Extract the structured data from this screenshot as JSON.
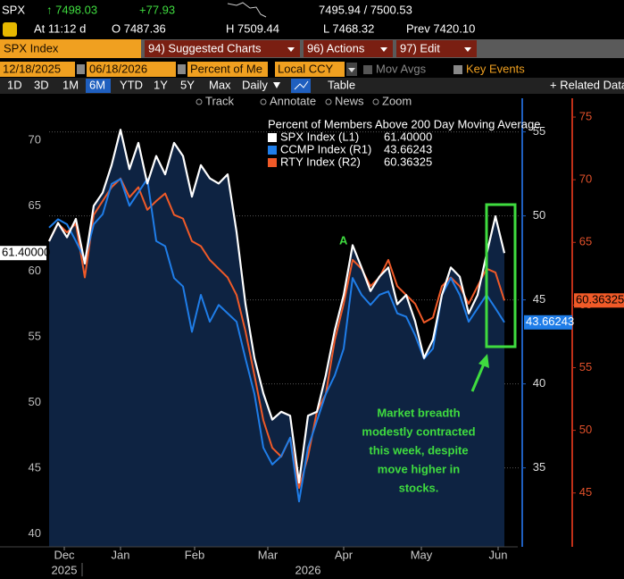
{
  "header": {
    "ticker": "SPX",
    "last": "↑ 7498.03",
    "change": "+77.93",
    "bid_ask": "7495.94 / 7500.53",
    "time": "At 11:12 d",
    "open": "O 7487.36",
    "high": "H 7509.44",
    "low": "L 7468.32",
    "prev": "Prev 7420.10"
  },
  "menu": {
    "security": "SPX Index",
    "items": [
      "94) Suggested Charts",
      "96) Actions",
      "97) Edit"
    ]
  },
  "controls": {
    "start": "12/18/2025",
    "end": "06/18/2026",
    "field": "Percent of Me",
    "currency": "Local CCY",
    "options": [
      "Mov Avgs",
      "Key Events"
    ]
  },
  "ranges": [
    "1D",
    "3D",
    "1M",
    "6M",
    "YTD",
    "1Y",
    "5Y",
    "Max"
  ],
  "selected_range": "6M",
  "frequency": "Daily",
  "table": "Table",
  "related": "+ Related Data",
  "tools": [
    "Track",
    "Annotate",
    "News",
    "Zoom"
  ],
  "chart_data": {
    "type": "line",
    "title": "Percent of Members Above 200 Day Moving Average",
    "xlim": [
      0,
      52.5
    ],
    "xticks": [
      {
        "value": 1.7,
        "label": "Dec"
      },
      {
        "value": 8,
        "label": "Jan"
      },
      {
        "value": 16.3,
        "label": "Feb"
      },
      {
        "value": 24.5,
        "label": "Mar"
      },
      {
        "value": 33,
        "label": "Apr"
      },
      {
        "value": 41.7,
        "label": "May"
      },
      {
        "value": 50.3,
        "label": "Jun"
      }
    ],
    "year_labels": [
      {
        "value": 1.7,
        "label": "2025"
      },
      {
        "value": 29,
        "label": "2026"
      }
    ],
    "ylim": [
      39,
      73.2
    ],
    "yticks": [
      40,
      45,
      50,
      55,
      60,
      65,
      70
    ],
    "y2lim": [
      30.3,
      57
    ],
    "y2ticks": [
      35,
      40,
      45,
      50,
      55
    ],
    "y3lim": [
      40.7,
      76.5
    ],
    "y3ticks": [
      45,
      50,
      55,
      60,
      65,
      70,
      75
    ],
    "series": [
      {
        "name": "SPX Index (L1)",
        "color": "#ffffff",
        "axis": "y",
        "last_label": "61.40000",
        "values": [
          62.3,
          63.7,
          62.6,
          64,
          60.6,
          65,
          66,
          68.1,
          70.8,
          67.8,
          69.8,
          66.7,
          68.8,
          67.4,
          69.8,
          68.8,
          65.7,
          68.1,
          67.1,
          66.7,
          67.4,
          63,
          57.5,
          53.4,
          50.7,
          48.7,
          49.3,
          49,
          43.9,
          49,
          49.3,
          52.1,
          55.5,
          58.2,
          62,
          60.3,
          58.5,
          59.6,
          60.3,
          57.5,
          58.2,
          56.2,
          53.4,
          54.8,
          58.2,
          60.3,
          59.6,
          56.8,
          58.2,
          61.3,
          64.2,
          61.4
        ]
      },
      {
        "name": "CCMP Index (R1)",
        "color": "#1f7de8",
        "axis": "y2",
        "last_label": "43.66243",
        "values": [
          49.3,
          49.8,
          49.5,
          48.5,
          47.4,
          49.5,
          50.1,
          51.9,
          52.2,
          50.6,
          51.4,
          52.2,
          48.5,
          48.2,
          46.3,
          45.8,
          43.1,
          45.3,
          43.7,
          44.7,
          44.2,
          43.7,
          41.5,
          39.4,
          36.2,
          35.2,
          35.7,
          36.8,
          33,
          36.2,
          37.8,
          39.4,
          40.5,
          42.1,
          46.3,
          45.3,
          44.7,
          45.3,
          45.5,
          44.2,
          44,
          42.9,
          41.5,
          42.1,
          45.3,
          46.3,
          45.3,
          43.7,
          44.5,
          45.3,
          44.5,
          43.66243
        ]
      },
      {
        "name": "RTY Index (R2)",
        "color": "#f05a28",
        "axis": "y3",
        "last_label": "60.36325",
        "values": [
          65.1,
          66.5,
          65.8,
          66.5,
          62.2,
          67.2,
          68.3,
          69.4,
          70.1,
          68.6,
          69.4,
          67.6,
          68.3,
          68.9,
          67.2,
          66.9,
          65.1,
          64.7,
          63.6,
          62.9,
          62.2,
          60.8,
          57.9,
          54.4,
          50.8,
          48.6,
          47.9,
          49.4,
          45.4,
          47.9,
          51.5,
          52.9,
          57.2,
          60.1,
          63.6,
          62.9,
          61.5,
          62.2,
          63.6,
          61.5,
          60.8,
          60.1,
          58.6,
          59,
          61.5,
          62.2,
          61.5,
          60.1,
          61.5,
          62.9,
          62.6,
          60.36325
        ]
      }
    ],
    "marker_label": "A",
    "annotation": [
      "Market breadth",
      "modestly contracted",
      "this week, despite",
      "move higher in",
      "stocks."
    ]
  }
}
